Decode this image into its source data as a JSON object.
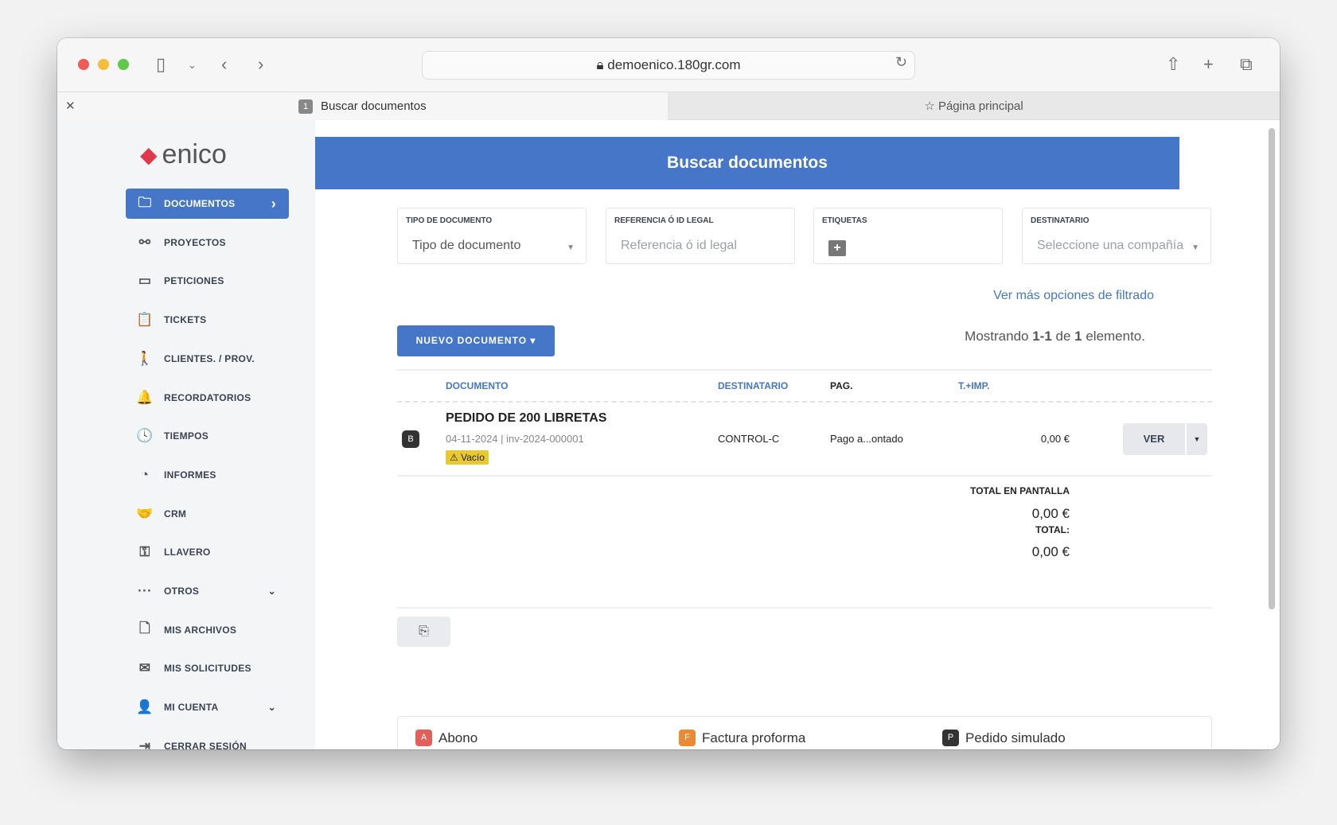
{
  "browser": {
    "url": "demoenico.180gr.com",
    "tabs": [
      {
        "label": "Buscar documentos",
        "badge": "1"
      },
      {
        "label": "Página principal"
      }
    ]
  },
  "sidebar": {
    "logo": "enico",
    "items": [
      {
        "label": "DOCUMENTOS",
        "icon": "folder-icon",
        "glyph": "🗀"
      },
      {
        "label": "PROYECTOS",
        "icon": "project-tree-icon",
        "glyph": "⚯"
      },
      {
        "label": "PETICIONES",
        "icon": "mailbox-icon",
        "glyph": "▭"
      },
      {
        "label": "TICKETS",
        "icon": "clipboard-icon",
        "glyph": "📋"
      },
      {
        "label": "CLIENTES. / PROV.",
        "icon": "walking-person-icon",
        "glyph": "🚶"
      },
      {
        "label": "RECORDATORIOS",
        "icon": "bell-icon",
        "glyph": "🔔"
      },
      {
        "label": "TIEMPOS",
        "icon": "clock-icon",
        "glyph": "🕓"
      },
      {
        "label": "INFORMES",
        "icon": "pie-chart-icon",
        "glyph": "◔"
      },
      {
        "label": "CRM",
        "icon": "handshake-icon",
        "glyph": "🤝"
      },
      {
        "label": "LLAVERO",
        "icon": "key-icon",
        "glyph": "⚿"
      },
      {
        "label": "OTROS",
        "icon": "more-icon",
        "glyph": "···"
      },
      {
        "label": "MIS ARCHIVOS",
        "icon": "file-icon",
        "glyph": "🗋"
      },
      {
        "label": "MIS SOLICITUDES",
        "icon": "envelope-icon",
        "glyph": "✉"
      },
      {
        "label": "MI CUENTA",
        "icon": "user-settings-icon",
        "glyph": "👤"
      },
      {
        "label": "CERRAR SESIÓN",
        "icon": "logout-icon",
        "glyph": "⇥"
      }
    ]
  },
  "main": {
    "title": "Buscar documentos",
    "filters": [
      {
        "label": "TIPO DE DOCUMENTO",
        "value": "Tipo de documento"
      },
      {
        "label": "REFERENCIA Ó ID LEGAL",
        "placeholder": "Referencia ó id legal"
      },
      {
        "label": "ETIQUETAS"
      },
      {
        "label": "DESTINATARIO",
        "placeholder": "Seleccione una compañía"
      }
    ],
    "more_filters": "Ver más opciones de filtrado",
    "new_doc": "NUEVO DOCUMENTO ▾",
    "count": {
      "pre": "Mostrando ",
      "range": "1-1",
      "mid": " de ",
      "total": "1",
      "post": " elemento."
    },
    "columns": [
      "DOCUMENTO",
      "DESTINATARIO",
      "PAG.",
      "T.+IMP."
    ],
    "rows": [
      {
        "badge": "B",
        "title": "PEDIDO DE 200 LIBRETAS",
        "sub": "04-11-2024 | inv-2024-000001",
        "tag": "⚠ Vacío",
        "recipient": "CONTROL-C",
        "payment": "Pago a...ontado",
        "amount": "0,00 €",
        "action": "VER"
      }
    ],
    "totals": {
      "screen_label": "TOTAL EN PANTALLA",
      "screen_value": "0,00 €",
      "total_label": "TOTAL:",
      "total_value": "0,00 €"
    },
    "legend": [
      {
        "badge": "A",
        "label": "Abono",
        "color": "#e0605a"
      },
      {
        "badge": "F",
        "label": "Factura proforma",
        "color": "#ea8a34"
      },
      {
        "badge": "P",
        "label": "Pedido simulado",
        "color": "#333333"
      }
    ]
  }
}
